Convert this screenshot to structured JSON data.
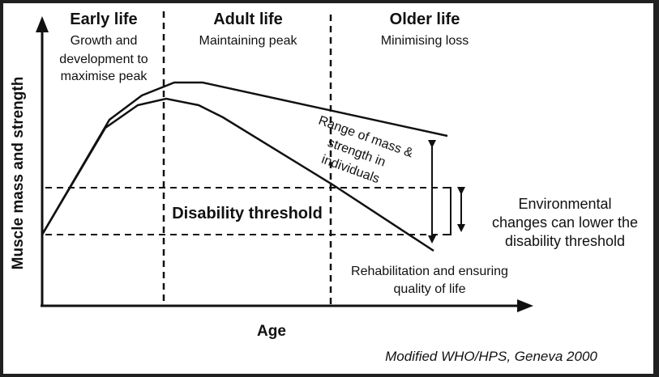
{
  "stages": [
    {
      "title": "Early life",
      "subtitle": [
        "Growth and",
        "development to",
        "maximise peak"
      ]
    },
    {
      "title": "Adult life",
      "subtitle": [
        "Maintaining peak"
      ]
    },
    {
      "title": "Older life",
      "subtitle": [
        "Minimising loss"
      ]
    }
  ],
  "axes": {
    "y_label": "Muscle mass and strength",
    "x_label": "Age"
  },
  "threshold_label": "Disability threshold",
  "range_label": [
    "Range of mass &",
    "strength in",
    "individuals"
  ],
  "environment_note": [
    "Environmental",
    "changes can lower the",
    "disability threshold"
  ],
  "rehab_note": [
    "Rehabilitation and ensuring",
    "quality of life"
  ],
  "source": "Modified WHO/HPS, Geneva 2000",
  "colors": {
    "line": "#111111",
    "background": "#ffffff",
    "frame": "#202020"
  }
}
